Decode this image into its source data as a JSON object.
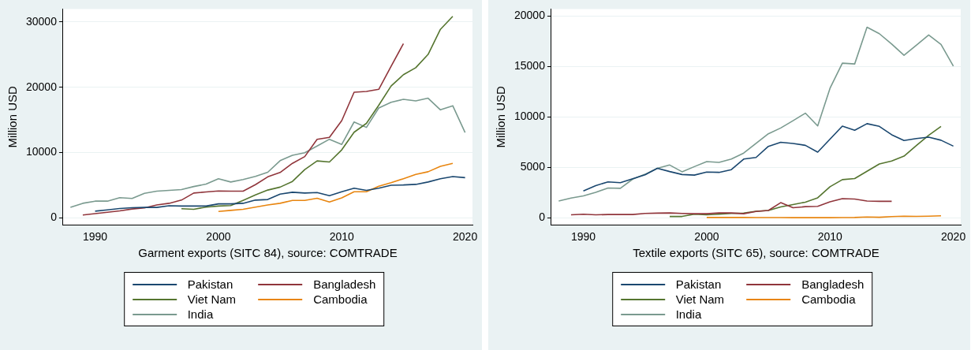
{
  "chart_data": [
    {
      "type": "line",
      "xlabel": "Garment exports (SITC 84), source: COMTRADE",
      "ylabel": "Million USD",
      "x": [
        1988,
        1989,
        1990,
        1991,
        1992,
        1993,
        1994,
        1995,
        1996,
        1997,
        1998,
        1999,
        2000,
        2001,
        2002,
        2003,
        2004,
        2005,
        2006,
        2007,
        2008,
        2009,
        2010,
        2011,
        2012,
        2013,
        2014,
        2015,
        2016,
        2017,
        2018,
        2019,
        2020
      ],
      "series": [
        {
          "name": "Pakistan",
          "color": "#1a476f",
          "values": [
            null,
            null,
            990,
            1200,
            1410,
            1530,
            1570,
            1570,
            1820,
            1780,
            1780,
            1780,
            2110,
            2110,
            2200,
            2690,
            2780,
            3610,
            3900,
            3770,
            3850,
            3360,
            3980,
            4520,
            4190,
            4520,
            4970,
            5010,
            5100,
            5470,
            5970,
            6300,
            6130
          ]
        },
        {
          "name": "Bangladesh",
          "color": "#90353b",
          "values": [
            null,
            410,
            620,
            830,
            1040,
            1330,
            1490,
            1950,
            2200,
            2690,
            3770,
            3940,
            4100,
            4060,
            4060,
            5060,
            6260,
            6920,
            8330,
            9370,
            12020,
            12310,
            14880,
            19230,
            19350,
            19680,
            23200,
            26690,
            null,
            null,
            null,
            null,
            null
          ]
        },
        {
          "name": "Viet Nam",
          "color": "#55752f",
          "values": [
            null,
            null,
            null,
            null,
            null,
            null,
            null,
            null,
            null,
            1370,
            1280,
            1620,
            1780,
            1860,
            2650,
            3480,
            4230,
            4680,
            5550,
            7380,
            8700,
            8540,
            10400,
            13100,
            14460,
            17240,
            20180,
            21920,
            23000,
            25030,
            28880,
            30870,
            null
          ]
        },
        {
          "name": "Cambodia",
          "color": "#e8850f",
          "values": [
            null,
            null,
            null,
            null,
            null,
            null,
            null,
            null,
            null,
            null,
            null,
            null,
            950,
            1120,
            1280,
            1620,
            1950,
            2200,
            2650,
            2650,
            2980,
            2400,
            3030,
            3980,
            3980,
            4810,
            5350,
            5970,
            6630,
            7040,
            7870,
            8330,
            null
          ]
        },
        {
          "name": "India",
          "color": "#7a9a8f",
          "values": [
            1575,
            2200,
            2530,
            2530,
            3070,
            2940,
            3730,
            4060,
            4190,
            4310,
            4770,
            5140,
            5970,
            5470,
            5840,
            6340,
            6960,
            8740,
            9570,
            9950,
            10980,
            12020,
            11230,
            14670,
            13840,
            16820,
            17700,
            18150,
            17900,
            18320,
            16530,
            17160,
            13050
          ]
        }
      ],
      "xlim": [
        1987.4,
        2020.6
      ],
      "xticks": [
        1990,
        2000,
        2010,
        2020
      ],
      "ylim": [
        -1100,
        32000
      ],
      "yticks": [
        0,
        10000,
        20000,
        30000
      ],
      "grid": "y",
      "legend": "bottom"
    },
    {
      "type": "line",
      "xlabel": "Textile exports (SITC 65), source: COMTRADE",
      "ylabel": "Million USD",
      "x": [
        1988,
        1989,
        1990,
        1991,
        1992,
        1993,
        1994,
        1995,
        1996,
        1997,
        1998,
        1999,
        2000,
        2001,
        2002,
        2003,
        2004,
        2005,
        2006,
        2007,
        2008,
        2009,
        2010,
        2011,
        2012,
        2013,
        2014,
        2015,
        2016,
        2017,
        2018,
        2019,
        2020
      ],
      "series": [
        {
          "name": "Pakistan",
          "color": "#1a476f",
          "values": [
            null,
            null,
            2650,
            3190,
            3560,
            3480,
            3860,
            4260,
            4900,
            4580,
            4290,
            4230,
            4530,
            4500,
            4770,
            5820,
            5980,
            7080,
            7480,
            7370,
            7180,
            6510,
            7800,
            9090,
            8680,
            9330,
            9060,
            8230,
            7660,
            7850,
            7990,
            7690,
            7100
          ]
        },
        {
          "name": "Bangladesh",
          "color": "#90353b",
          "values": [
            null,
            290,
            350,
            290,
            320,
            320,
            320,
            430,
            460,
            480,
            430,
            400,
            400,
            480,
            480,
            400,
            620,
            720,
            1500,
            990,
            1100,
            1130,
            1580,
            1900,
            1850,
            1660,
            1630,
            1630,
            null,
            null,
            null,
            null,
            null
          ]
        },
        {
          "name": "Viet Nam",
          "color": "#55752f",
          "values": [
            null,
            null,
            null,
            null,
            null,
            null,
            null,
            null,
            null,
            130,
            130,
            350,
            290,
            350,
            430,
            460,
            640,
            720,
            1070,
            1310,
            1550,
            1980,
            3080,
            3780,
            3890,
            4610,
            5330,
            5630,
            6110,
            7160,
            8170,
            9060,
            null
          ]
        },
        {
          "name": "Cambodia",
          "color": "#e8850f",
          "values": [
            null,
            null,
            null,
            null,
            null,
            null,
            null,
            null,
            null,
            null,
            null,
            null,
            30,
            30,
            30,
            30,
            20,
            20,
            20,
            10,
            10,
            10,
            10,
            20,
            30,
            80,
            50,
            120,
            160,
            140,
            160,
            190,
            null
          ]
        },
        {
          "name": "India",
          "color": "#7a9a8f",
          "values": [
            1660,
            1960,
            2170,
            2520,
            2950,
            2920,
            3830,
            4310,
            4900,
            5230,
            4560,
            5070,
            5570,
            5490,
            5820,
            6410,
            7370,
            8330,
            8900,
            9620,
            10370,
            9110,
            12840,
            15330,
            15250,
            18890,
            18250,
            17230,
            16110,
            17100,
            18120,
            17180,
            15030
          ]
        }
      ],
      "xlim": [
        1987.4,
        2020.6
      ],
      "xticks": [
        1990,
        2000,
        2010,
        2020
      ],
      "ylim": [
        -700,
        20700
      ],
      "yticks": [
        0,
        5000,
        10000,
        15000,
        20000
      ],
      "grid": "y",
      "legend": "bottom"
    }
  ]
}
